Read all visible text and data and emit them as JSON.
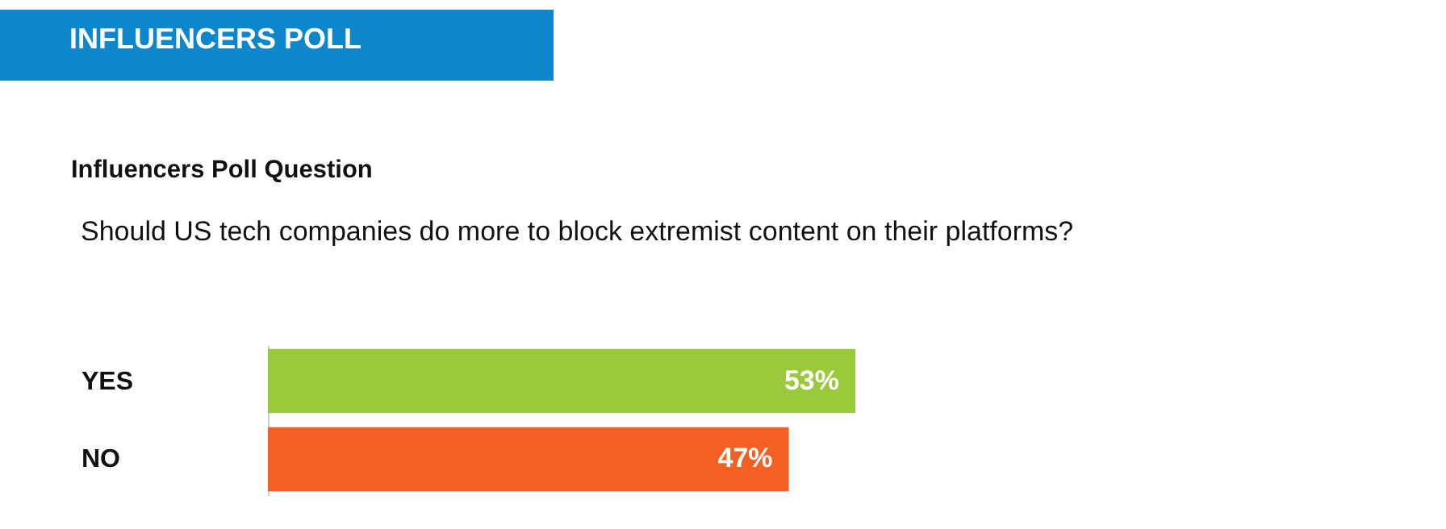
{
  "chart_data": {
    "type": "bar",
    "title": "INFLUENCERS POLL",
    "subtitle": "Influencers Poll Question",
    "annotations": [
      "Should US tech companies do more to block extremist content on their platforms?"
    ],
    "orientation": "horizontal",
    "categories": [
      "YES",
      "NO"
    ],
    "values": [
      53,
      47
    ],
    "colors": [
      "#9aca3c",
      "#f26024"
    ],
    "value_labels": [
      "53%",
      "47%"
    ]
  }
}
